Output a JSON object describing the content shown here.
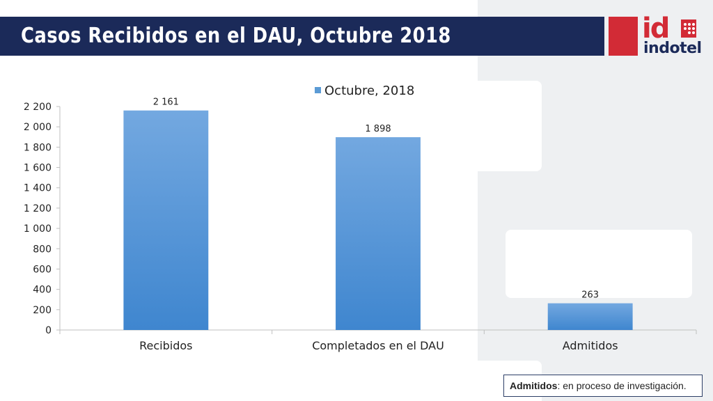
{
  "title": "Casos Recibidos en el DAU, Octubre 2018",
  "logo": {
    "mark": "id",
    "brand": "indotel",
    "red": "#d22b36",
    "navy": "#1b2a59"
  },
  "note": {
    "term": "Admitidos",
    "text": ": en proceso de investigación."
  },
  "chart_data": {
    "type": "bar",
    "categories": [
      "Recibidos",
      "Completados en el DAU",
      "Admitidos"
    ],
    "series": [
      {
        "name": "Octubre, 2018",
        "values": [
          2161,
          1898,
          263
        ],
        "value_labels": [
          "2 161",
          "1 898",
          "263"
        ],
        "color": "#5b9bd5"
      }
    ],
    "ylim": [
      0,
      2200
    ],
    "yticks": [
      0,
      200,
      400,
      600,
      800,
      1000,
      1200,
      1400,
      1600,
      1800,
      2000,
      2200
    ],
    "ytick_labels": [
      "0",
      "200",
      "400",
      "600",
      "800",
      "1 000",
      "1 200",
      "1 400",
      "1 600",
      "1 800",
      "2 000",
      "2 200"
    ],
    "legend_position": "top",
    "grid": false
  }
}
